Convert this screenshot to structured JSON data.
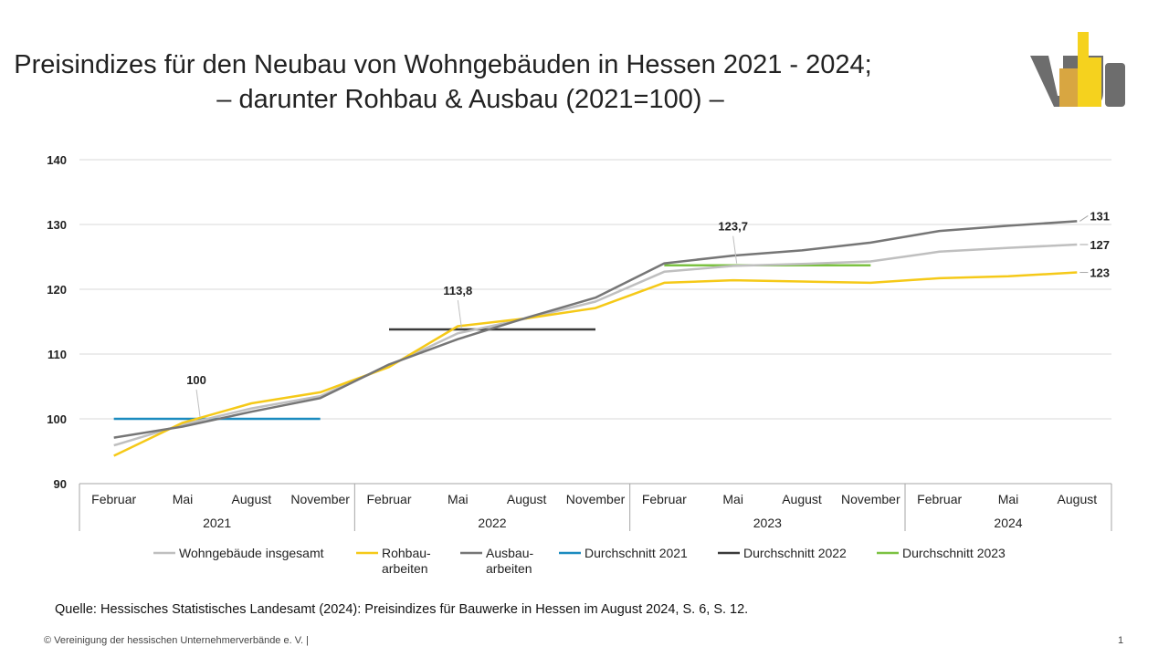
{
  "title": {
    "line1": "Preisindizes für den Neubau von Wohngebäuden in Hessen 2021 - 2024;",
    "line2": "– darunter Rohbau & Ausbau (2021=100) –"
  },
  "logo_icon": "vhu-logo-icon",
  "source": "Quelle: Hessisches Statistisches Landesamt (2024): Preisindizes für Bauwerke in Hessen im August 2024, S. 6, S. 12.",
  "footer": "© Vereinigung der hessischen Unternehmerverbände e. V. |",
  "page_number": "1",
  "colors": {
    "wohn": "#bfbfbf",
    "rohbau": "#f5c918",
    "ausbau": "#767676",
    "avg2021": "#1b8bbf",
    "avg2022": "#3a3a3a",
    "avg2023": "#7cc242",
    "logo_yellow": "#f5d21e",
    "logo_gold": "#d8a641",
    "logo_gray": "#6d6d6d"
  },
  "chart_data": {
    "type": "line",
    "ylim": [
      90,
      140
    ],
    "yticks": [
      90,
      100,
      110,
      120,
      130,
      140
    ],
    "grid": true,
    "legend_position": "bottom",
    "categories": [
      "Februar",
      "Mai",
      "August",
      "November",
      "Februar",
      "Mai",
      "August",
      "November",
      "Februar",
      "Mai",
      "August",
      "November",
      "Februar",
      "Mai",
      "August"
    ],
    "year_groups": [
      {
        "label": "2021",
        "start": 0,
        "end": 3
      },
      {
        "label": "2022",
        "start": 4,
        "end": 7
      },
      {
        "label": "2023",
        "start": 8,
        "end": 11
      },
      {
        "label": "2024",
        "start": 12,
        "end": 14
      }
    ],
    "series": [
      {
        "name": "Wohngebäude insgesamt",
        "color_key": "wohn",
        "values": [
          95.9,
          99.1,
          101.6,
          103.5,
          108.2,
          113.2,
          115.5,
          118.1,
          122.7,
          123.6,
          123.9,
          124.3,
          125.8,
          126.4,
          126.9
        ],
        "end_label": "127"
      },
      {
        "name": "Rohbau-\narbeiten",
        "color_key": "rohbau",
        "values": [
          94.3,
          99.4,
          102.4,
          104.1,
          108.0,
          114.3,
          115.5,
          117.1,
          121.0,
          121.4,
          121.2,
          121.0,
          121.7,
          122.0,
          122.6
        ],
        "end_label": "123"
      },
      {
        "name": "Ausbau-\narbeiten",
        "color_key": "ausbau",
        "values": [
          97.1,
          98.8,
          101.1,
          103.2,
          108.4,
          112.3,
          115.6,
          118.7,
          124.0,
          125.2,
          126.0,
          127.2,
          129.0,
          129.8,
          130.5
        ],
        "end_label": "131"
      }
    ],
    "averages": [
      {
        "name": "Durchschnitt 2021",
        "color_key": "avg2021",
        "value": 100,
        "start": 0,
        "end": 3,
        "label": "100",
        "label_at": 1.2
      },
      {
        "name": "Durchschnitt 2022",
        "color_key": "avg2022",
        "value": 113.8,
        "start": 4,
        "end": 7,
        "label": "113,8",
        "label_at": 5.0
      },
      {
        "name": "Durchschnitt 2023",
        "color_key": "avg2023",
        "value": 123.7,
        "start": 8,
        "end": 11,
        "label": "123,7",
        "label_at": 9.0
      }
    ],
    "legend": [
      {
        "label": "Wohngebäude insgesamt",
        "color_key": "wohn"
      },
      {
        "label": "Rohbau-\narbeiten",
        "color_key": "rohbau"
      },
      {
        "label": "Ausbau-\narbeiten",
        "color_key": "ausbau"
      },
      {
        "label": "Durchschnitt 2021",
        "color_key": "avg2021"
      },
      {
        "label": "Durchschnitt 2022",
        "color_key": "avg2022"
      },
      {
        "label": "Durchschnitt 2023",
        "color_key": "avg2023"
      }
    ]
  }
}
